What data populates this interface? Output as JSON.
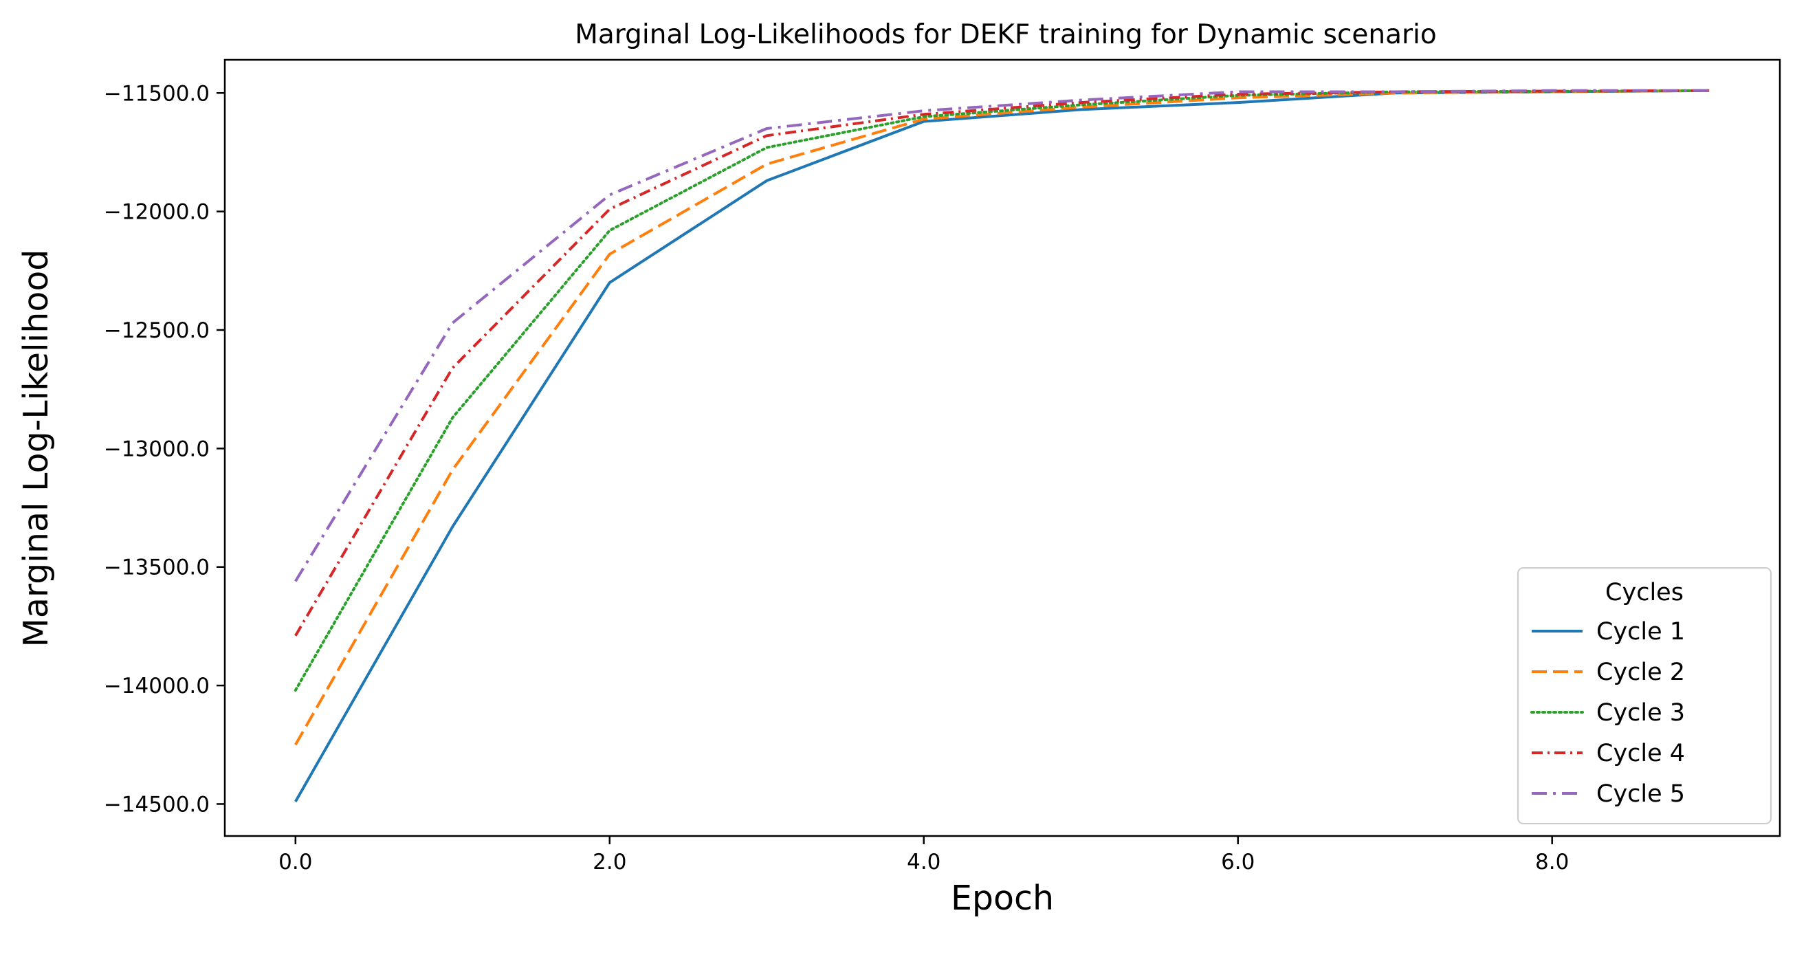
{
  "chart_data": {
    "type": "line",
    "title": "Marginal Log-Likelihoods for DEKF training for Dynamic scenario",
    "xlabel": "Epoch",
    "ylabel": "Marginal Log-Likelihood",
    "x": [
      0,
      1,
      2,
      3,
      4,
      5,
      6,
      7,
      8,
      9
    ],
    "xlim": [
      -0.45,
      9.45
    ],
    "ylim": [
      -14635,
      -11360
    ],
    "xticks": [
      0,
      2,
      4,
      6,
      8
    ],
    "xtick_labels": [
      "0.0",
      "2.0",
      "4.0",
      "6.0",
      "8.0"
    ],
    "yticks": [
      -11500,
      -12000,
      -12500,
      -13000,
      -13500,
      -14000,
      -14500
    ],
    "ytick_labels": [
      "−11500.0",
      "−12000.0",
      "−12500.0",
      "−13000.0",
      "−13500.0",
      "−14000.0",
      "−14500.0"
    ],
    "grid": false,
    "legend": {
      "title": "Cycles",
      "location": "lower-right"
    },
    "series": [
      {
        "name": "Cycle 1",
        "color": "#1f77b4",
        "style": "solid",
        "values": [
          -14490,
          -13330,
          -12300,
          -11870,
          -11620,
          -11570,
          -11540,
          -11500,
          -11495,
          -11490
        ]
      },
      {
        "name": "Cycle 2",
        "color": "#ff7f0e",
        "style": "dashed",
        "values": [
          -14250,
          -13090,
          -12180,
          -11800,
          -11610,
          -11560,
          -11520,
          -11500,
          -11495,
          -11490
        ]
      },
      {
        "name": "Cycle 3",
        "color": "#2ca02c",
        "style": "dotted",
        "values": [
          -14020,
          -12870,
          -12080,
          -11730,
          -11600,
          -11550,
          -11510,
          -11495,
          -11493,
          -11490
        ]
      },
      {
        "name": "Cycle 4",
        "color": "#d62728",
        "style": "dashdot",
        "values": [
          -13790,
          -12660,
          -11990,
          -11680,
          -11590,
          -11540,
          -11505,
          -11495,
          -11492,
          -11490
        ]
      },
      {
        "name": "Cycle 5",
        "color": "#9467bd",
        "style": "dashdotwide",
        "values": [
          -13560,
          -12470,
          -11930,
          -11650,
          -11575,
          -11530,
          -11495,
          -11495,
          -11490,
          -11490
        ]
      }
    ]
  }
}
